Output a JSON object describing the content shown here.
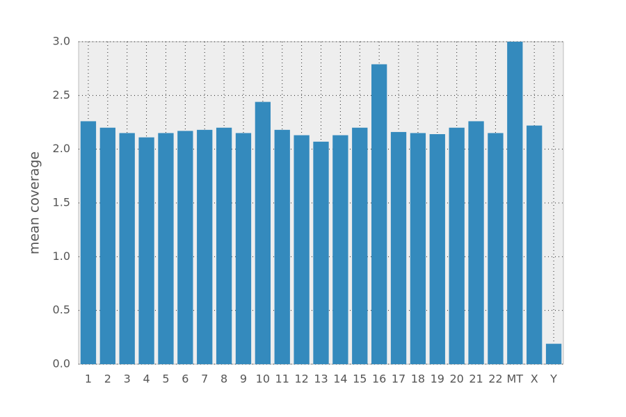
{
  "chart_data": {
    "type": "bar",
    "ylabel": "mean coverage",
    "categories": [
      "1",
      "2",
      "3",
      "4",
      "5",
      "6",
      "7",
      "8",
      "9",
      "10",
      "11",
      "12",
      "13",
      "14",
      "15",
      "16",
      "17",
      "18",
      "19",
      "20",
      "21",
      "22",
      "MT",
      "X",
      "Y"
    ],
    "values": [
      2.26,
      2.2,
      2.15,
      2.11,
      2.15,
      2.17,
      2.18,
      2.2,
      2.15,
      2.44,
      2.18,
      2.13,
      2.07,
      2.13,
      2.2,
      2.79,
      2.16,
      2.15,
      2.14,
      2.2,
      2.26,
      2.15,
      3.0,
      2.22,
      0.19
    ],
    "color": "#348abd",
    "ylim": [
      0,
      3
    ],
    "yticks": [
      {
        "value": 0,
        "label": "0.0"
      },
      0.5,
      {
        "value": 1,
        "label": "1.0"
      },
      1.5,
      {
        "value": 2,
        "label": "2.0"
      },
      2.5,
      {
        "value": 3,
        "label": "3.0"
      }
    ],
    "grid": true
  }
}
